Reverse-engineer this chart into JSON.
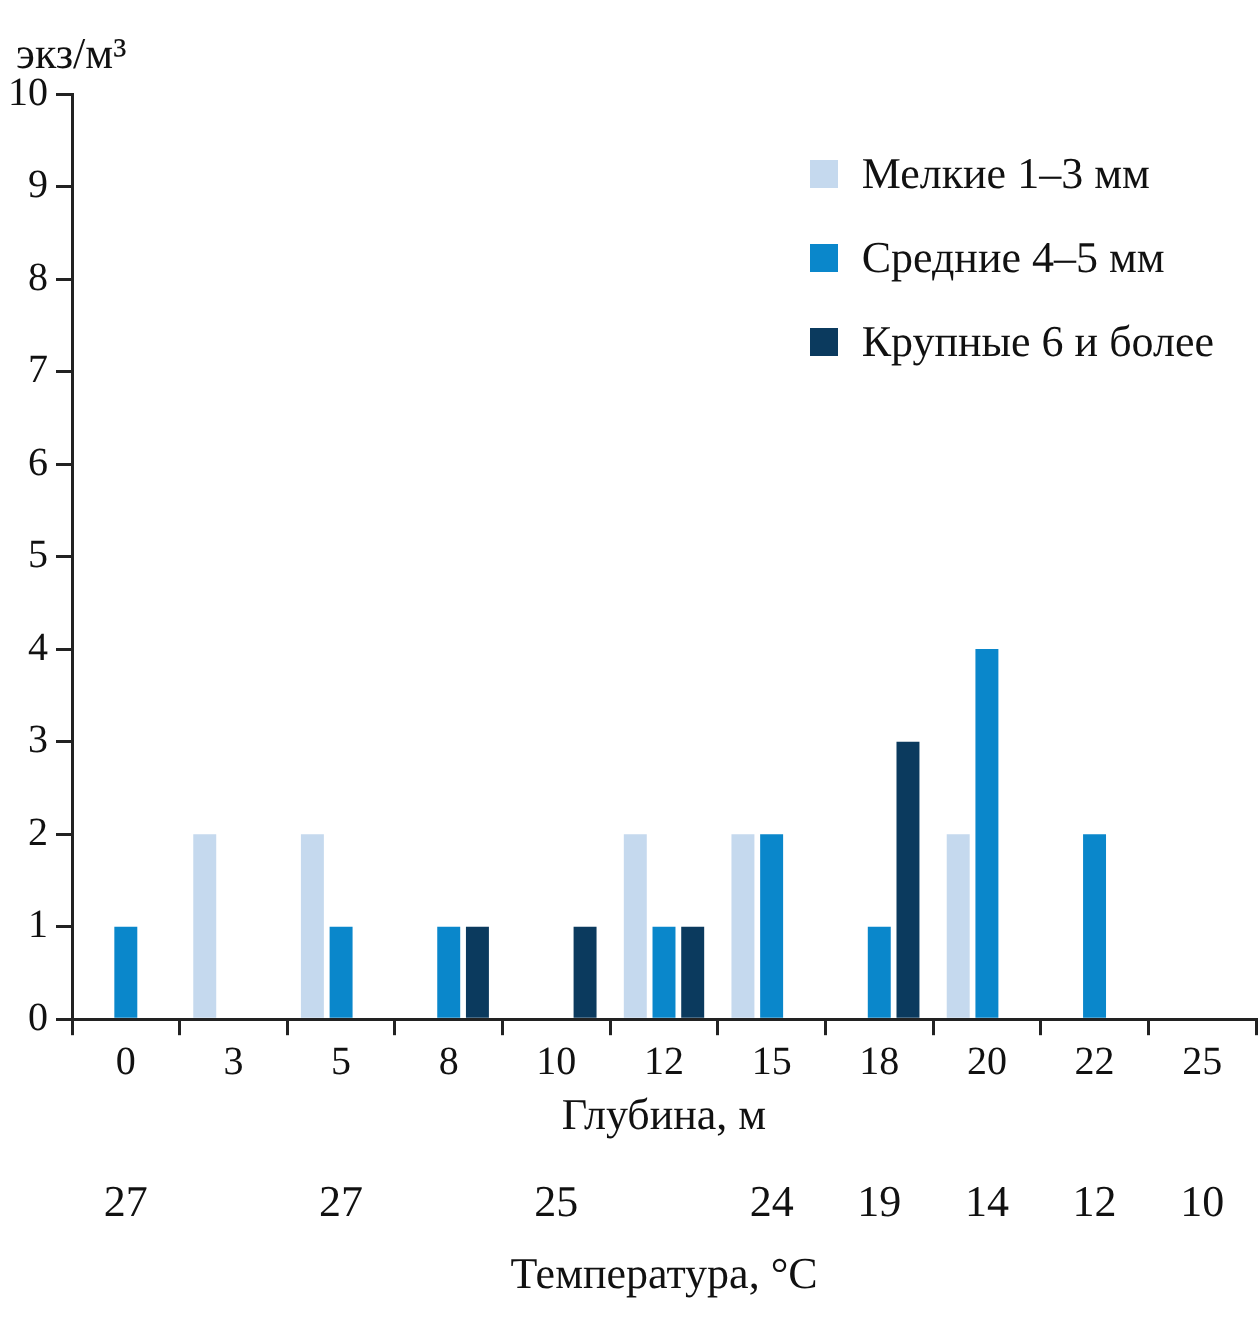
{
  "chart_data": {
    "type": "bar",
    "ylabel": "экз/м³",
    "xlabel": "Глубина, м",
    "categories": [
      "0",
      "3",
      "5",
      "8",
      "10",
      "12",
      "15",
      "18",
      "20",
      "22",
      "25"
    ],
    "series": [
      {
        "name": "Мелкие 1–3 мм",
        "color": "#c5d9ee",
        "values": [
          0,
          2,
          2,
          0,
          0,
          2,
          2,
          0,
          2,
          0,
          0
        ]
      },
      {
        "name": "Средние 4–5 мм",
        "color": "#0a87cb",
        "values": [
          1,
          0,
          1,
          1,
          0,
          1,
          2,
          1,
          4,
          2,
          0
        ]
      },
      {
        "name": "Крупные 6 и более",
        "color": "#0b3a5e",
        "values": [
          0,
          0,
          0,
          1,
          1,
          1,
          0,
          3,
          0,
          0,
          0
        ]
      }
    ],
    "ylim": [
      0,
      10
    ],
    "yticks": [
      0,
      1,
      2,
      3,
      4,
      5,
      6,
      7,
      8,
      9,
      10
    ],
    "grid": false,
    "legend": "top right",
    "annotations": [
      "27",
      "27",
      "25",
      "24",
      "19",
      "14",
      "12",
      "10",
      "Температура, °C"
    ]
  }
}
